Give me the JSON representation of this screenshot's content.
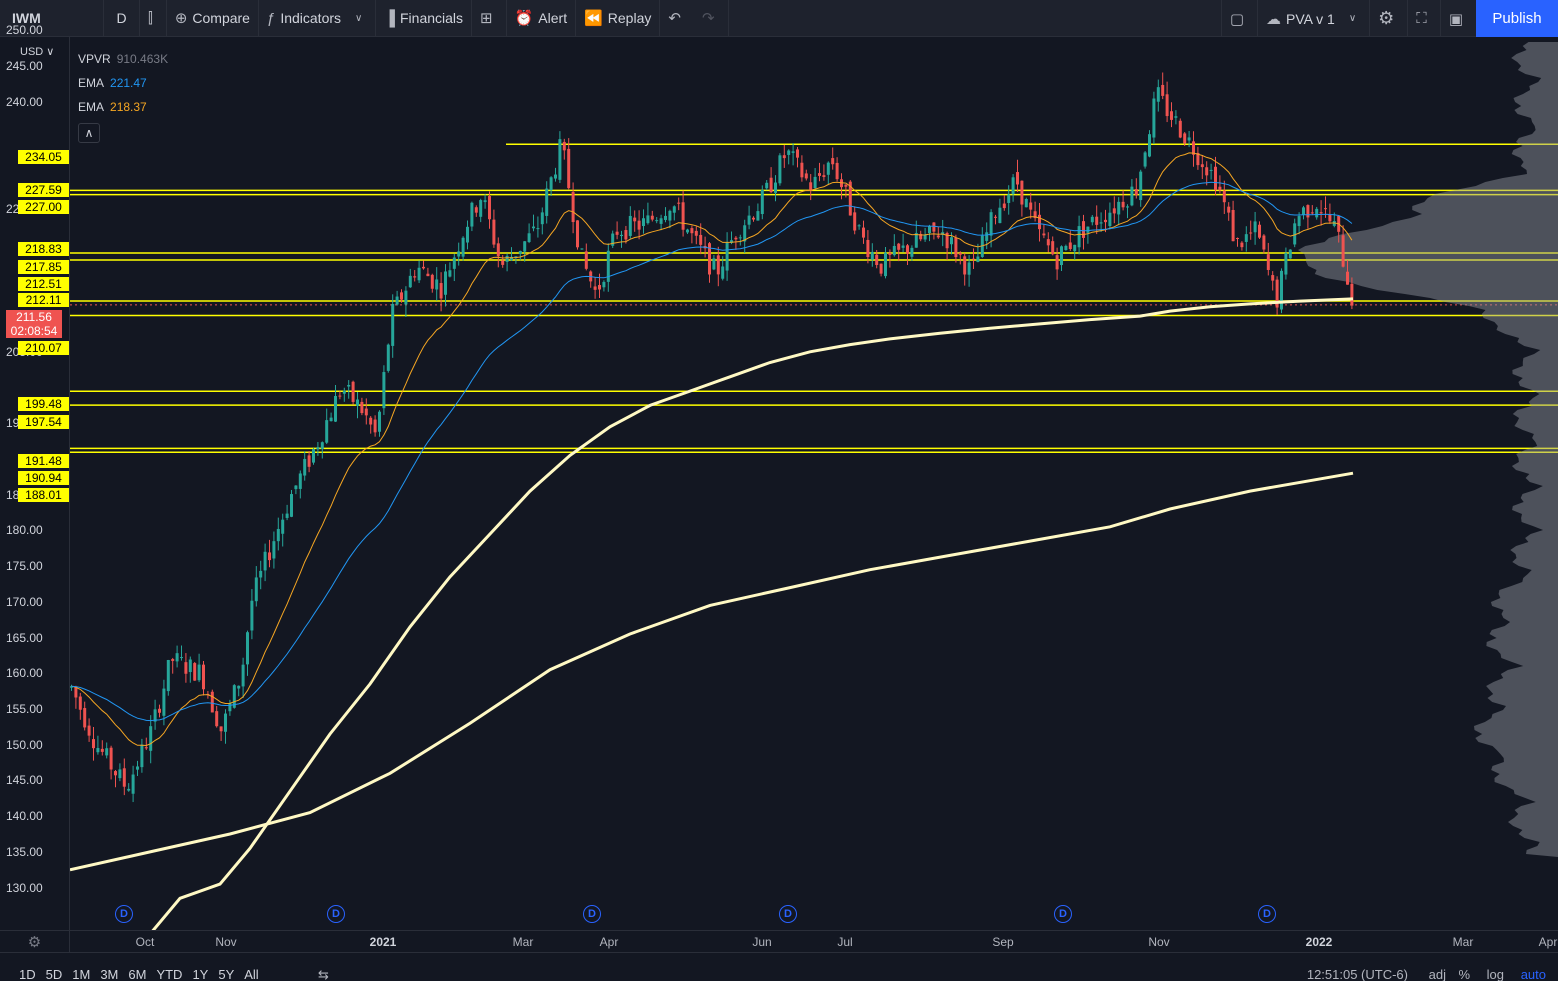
{
  "toolbar": {
    "symbol": "IWM",
    "interval": "D",
    "compare": "Compare",
    "indicators": "Indicators",
    "financials": "Financials",
    "alert": "Alert",
    "replay": "Replay",
    "layout_name": "PVA v 1",
    "publish": "Publish"
  },
  "legend": {
    "vpvr_name": "VPVR",
    "vpvr_value": "910.463K",
    "ema1_name": "EMA",
    "ema1_value": "221.47",
    "ema1_color": "#2196f3",
    "ema2_name": "EMA",
    "ema2_value": "218.37",
    "ema2_color": "#f5a623"
  },
  "price_axis": {
    "currency": "USD",
    "ticks": [
      "250.00",
      "245.00",
      "240.00",
      "225.00",
      "205.00",
      "195.00",
      "185.00",
      "180.00",
      "175.00",
      "170.00",
      "165.00",
      "160.00",
      "155.00",
      "150.00",
      "145.00",
      "140.00",
      "135.00",
      "130.00"
    ],
    "current_price": "211.56",
    "countdown": "02:08:54",
    "level_labels": [
      "234.05",
      "227.59",
      "227.00",
      "218.83",
      "217.85",
      "212.51",
      "212.11",
      "210.07",
      "199.48",
      "197.54",
      "191.48",
      "190.94",
      "188.01"
    ]
  },
  "time_axis": {
    "labels": [
      {
        "text": "Oct",
        "major": false
      },
      {
        "text": "Nov",
        "major": false
      },
      {
        "text": "2021",
        "major": true
      },
      {
        "text": "Mar",
        "major": false
      },
      {
        "text": "Apr",
        "major": false
      },
      {
        "text": "Jun",
        "major": false
      },
      {
        "text": "Jul",
        "major": false
      },
      {
        "text": "Sep",
        "major": false
      },
      {
        "text": "Nov",
        "major": false
      },
      {
        "text": "2022",
        "major": true
      },
      {
        "text": "Mar",
        "major": false
      },
      {
        "text": "Apr",
        "major": false
      }
    ],
    "dividend_marker": "D"
  },
  "bottom": {
    "ranges": [
      "1D",
      "5D",
      "1M",
      "3M",
      "6M",
      "YTD",
      "1Y",
      "5Y",
      "All"
    ],
    "clock": "12:51:05 (UTC-6)",
    "adj": "adj",
    "percent": "%",
    "log": "log",
    "auto": "auto"
  },
  "colors": {
    "up": "#26a69a",
    "down": "#ef5350",
    "level_line": "#ffff00",
    "sma200": "#fff9c4",
    "accent": "#2962ff"
  }
}
